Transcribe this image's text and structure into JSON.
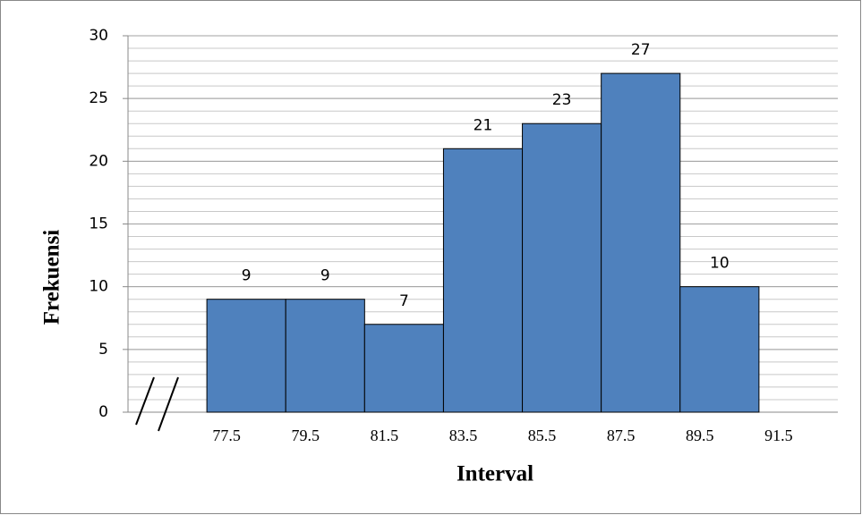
{
  "chart_data": {
    "type": "histogram",
    "xlabel": "Interval",
    "ylabel": "Frekuensi",
    "bins": [
      77.5,
      79.5,
      81.5,
      83.5,
      85.5,
      87.5,
      89.5,
      91.5
    ],
    "values": [
      9,
      9,
      7,
      21,
      23,
      27,
      10
    ],
    "color": "#4f81bd",
    "xlim": [
      75.5,
      93.5
    ],
    "ylim": [
      0,
      30
    ],
    "yticks": [
      0,
      5,
      10,
      15,
      20,
      25,
      30
    ],
    "yminorticks": [
      0,
      1,
      2,
      3,
      4,
      5,
      6,
      7,
      8,
      9,
      10,
      11,
      12,
      13,
      14,
      15,
      16,
      17,
      18,
      19,
      20,
      21,
      22,
      23,
      24,
      25,
      26,
      27,
      28,
      29,
      30
    ],
    "grid": true
  }
}
